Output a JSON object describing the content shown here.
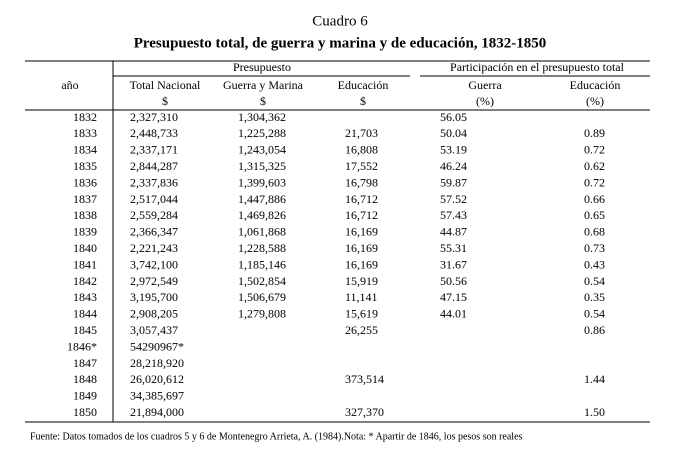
{
  "header": {
    "title": "Cuadro 6",
    "subtitle": "Presupuesto total, de guerra y marina y de educación, 1832-1850"
  },
  "table": {
    "group_headers": [
      "Presupuesto",
      "Participación en el presupuesto total"
    ],
    "columns": [
      "año",
      "Total Nacional",
      "Guerra y Marina",
      "Educación",
      "Guerra",
      "Educación"
    ],
    "units": [
      null,
      "$",
      "$",
      "$",
      "(%)",
      "(%)"
    ],
    "rows": [
      [
        "1832",
        "2,327,310",
        "1,304,362",
        null,
        "56.05",
        null
      ],
      [
        "1833",
        "2,448,733",
        "1,225,288",
        "21,703",
        "50.04",
        "0.89"
      ],
      [
        "1834",
        "2,337,171",
        "1,243,054",
        "16,808",
        "53.19",
        "0.72"
      ],
      [
        "1835",
        "2,844,287",
        "1,315,325",
        "17,552",
        "46.24",
        "0.62"
      ],
      [
        "1836",
        "2,337,836",
        "1,399,603",
        "16,798",
        "59.87",
        "0.72"
      ],
      [
        "1837",
        "2,517,044",
        "1,447,886",
        "16,712",
        "57.52",
        "0.66"
      ],
      [
        "1838",
        "2,559,284",
        "1,469,826",
        "16,712",
        "57.43",
        "0.65"
      ],
      [
        "1839",
        "2,366,347",
        "1,061,868",
        "16,169",
        "44.87",
        "0.68"
      ],
      [
        "1840",
        "2,221,243",
        "1,228,588",
        "16,169",
        "55.31",
        "0.73"
      ],
      [
        "1841",
        "3,742,100",
        "1,185,146",
        "16,169",
        "31.67",
        "0.43"
      ],
      [
        "1842",
        "2,972,549",
        "1,502,854",
        "15,919",
        "50.56",
        "0.54"
      ],
      [
        "1843",
        "3,195,700",
        "1,506,679",
        "11,141",
        "47.15",
        "0.35"
      ],
      [
        "1844",
        "2,908,205",
        "1,279,808",
        "15,619",
        "44.01",
        "0.54"
      ],
      [
        "1845",
        "3,057,437",
        null,
        "26,255",
        null,
        "0.86"
      ],
      [
        "1846*",
        "54290967*",
        null,
        null,
        null,
        null
      ],
      [
        "1847",
        "28,218,920",
        null,
        null,
        null,
        null
      ],
      [
        "1848",
        "26,020,612",
        null,
        "373,514",
        null,
        "1.44"
      ],
      [
        "1849",
        "34,385,697",
        null,
        null,
        null,
        null
      ],
      [
        "1850",
        "21,894,000",
        null,
        "327,370",
        null,
        "1.50"
      ]
    ]
  },
  "footnote": "Fuente: Datos tomados de los cuadros 5 y 6 de Montenegro Arrieta, A. (1984).Nota: * Apartir de 1846, los pesos son  reales"
}
